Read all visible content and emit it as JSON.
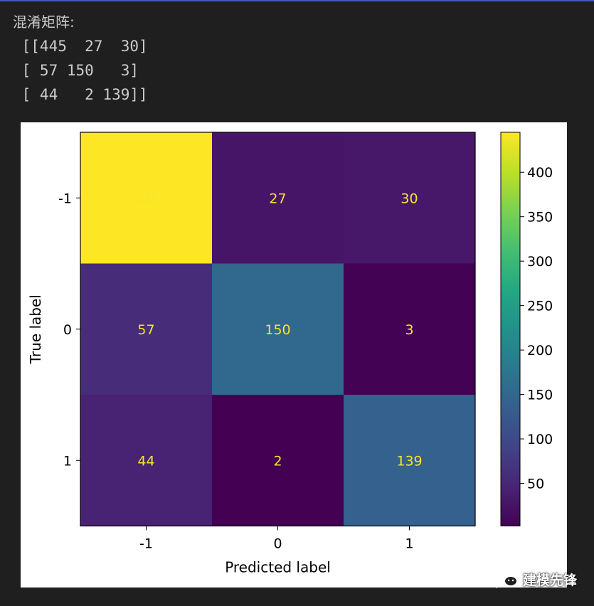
{
  "console": {
    "title": "混淆矩阵:",
    "lines": [
      " [[445  27  30]",
      " [ 57 150   3]",
      " [ 44   2 139]]"
    ]
  },
  "chart_data": {
    "type": "heatmap",
    "title": "",
    "xlabel": "Predicted label",
    "ylabel": "True label",
    "x_categories": [
      "-1",
      "0",
      "1"
    ],
    "y_categories": [
      "-1",
      "0",
      "1"
    ],
    "values": [
      [
        445,
        27,
        30
      ],
      [
        57,
        150,
        3
      ],
      [
        44,
        2,
        139
      ]
    ],
    "colorscale": "viridis",
    "value_range": [
      2,
      445
    ],
    "colorbar_ticks": [
      50,
      100,
      150,
      200,
      250,
      300,
      350,
      400
    ],
    "annotation_color": "#f5e62a"
  },
  "watermark": {
    "text": "建模先锋",
    "icon": "wechat-icon"
  }
}
